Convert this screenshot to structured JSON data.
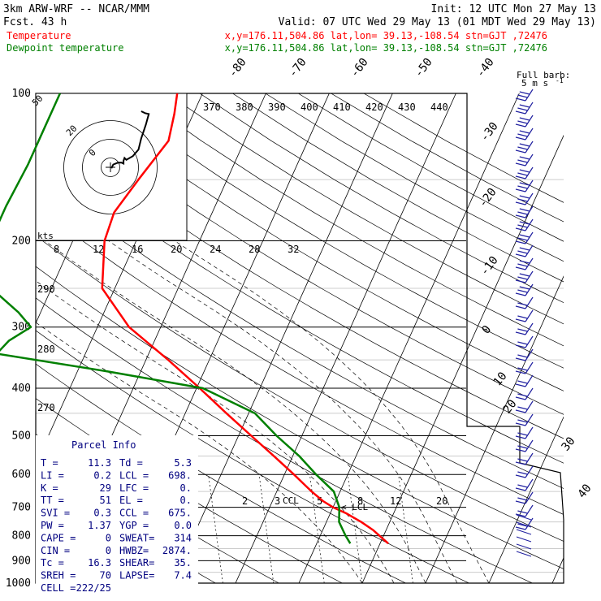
{
  "header": {
    "model": "3km ARW-WRF -- NCAR/MMM",
    "init": "Init: 12 UTC Mon 27 May 13",
    "fcst": "Fcst.   43 h",
    "valid": "Valid: 07 UTC Wed 29 May 13 (01 MDT Wed 29 May 13)"
  },
  "legend": {
    "temperature": {
      "label": "Temperature",
      "info": "x,y=176.11,504.86   lat,lon= 39.13,-108.54  stn=GJT ,72476",
      "color": "#ff0000"
    },
    "dewpoint": {
      "label": "Dewpoint temperature",
      "info": "x,y=176.11,504.86   lat,lon= 39.13,-108.54  stn=GJT ,72476",
      "color": "#008000"
    }
  },
  "barb_legend": {
    "line1": "Full barb:",
    "line2": "5 m s",
    "exp": "-1"
  },
  "parcel_info": {
    "title": "Parcel Info",
    "rows": [
      [
        "T  =",
        "11.3",
        "Td =",
        "5.3"
      ],
      [
        "LI =",
        "0.2",
        "LCL =",
        "698."
      ],
      [
        "K  =",
        "29",
        "LFC =",
        "0."
      ],
      [
        "TT =",
        "51",
        "EL  =",
        "0."
      ],
      [
        "SVI =",
        "0.3",
        "CCL =",
        "675."
      ],
      [
        "PW =",
        "1.37",
        "YGP =",
        "0.0"
      ],
      [
        "CAPE =",
        "0",
        "SWEAT=",
        "314"
      ],
      [
        "CIN =",
        "0",
        "HWBZ=",
        "2874."
      ],
      [
        "Tc =",
        "16.3",
        "SHEAR=",
        "35."
      ],
      [
        "SREH =",
        "70",
        "LAPSE=",
        "7.4"
      ],
      [
        "CELL =",
        "222/25",
        "",
        ""
      ]
    ]
  },
  "hodograph": {
    "units": "kts",
    "ring_labels": [
      "50",
      "20",
      "0"
    ],
    "ring_speeds": [
      10,
      30,
      50
    ],
    "u": [
      1,
      3,
      8,
      12,
      14,
      14,
      15,
      17,
      24,
      30,
      33,
      36,
      38,
      41,
      37,
      33
    ],
    "v": [
      -1,
      3,
      5,
      5,
      4,
      7,
      10,
      8,
      12,
      19,
      31,
      40,
      46,
      57,
      58,
      60
    ]
  },
  "chart_data": {
    "type": "line",
    "title": "",
    "xlabel": "",
    "ylabel": "",
    "y_scale": "log",
    "ylim": [
      1000,
      100
    ],
    "pressure_levels": [
      "100",
      "200",
      "300",
      "400",
      "500",
      "600",
      "700",
      "800",
      "900",
      "1000"
    ],
    "isotherm_labels": [
      "-80",
      "-70",
      "-60",
      "-50",
      "-40",
      "-30",
      "-20",
      "-10",
      "0",
      "10",
      "20",
      "30",
      "40"
    ],
    "theta_labels": [
      "370",
      "380",
      "390",
      "400",
      "410",
      "420",
      "430",
      "440"
    ],
    "theta_lower_labels": [
      "290",
      "280",
      "270"
    ],
    "mixing_ratio_labels": [
      "2",
      "3",
      "5",
      "8",
      "12",
      "20"
    ],
    "hodo_speed_labels": [
      "8",
      "12",
      "16",
      "20",
      "24",
      "28",
      "32"
    ],
    "annotations": {
      "ccl": "CCL",
      "lcl": "< LCL"
    },
    "series": [
      {
        "name": "Temperature",
        "color": "#ff0000",
        "pressure": [
          830,
          810,
          780,
          750,
          720,
          700,
          680,
          650,
          600,
          550,
          500,
          450,
          400,
          350,
          300,
          250,
          200,
          175,
          150,
          125,
          110,
          100
        ],
        "temperature": [
          11.3,
          10,
          8,
          5.5,
          2.5,
          0,
          -2,
          -4.5,
          -8.5,
          -13,
          -18,
          -23.5,
          -29.5,
          -36.5,
          -45,
          -52,
          -55,
          -55.5,
          -54,
          -52,
          -53,
          -54
        ]
      },
      {
        "name": "Dewpoint temperature",
        "color": "#008000",
        "pressure": [
          830,
          800,
          750,
          700,
          650,
          600,
          550,
          500,
          450,
          400,
          370,
          340,
          320,
          300,
          280,
          250,
          220,
          200,
          170,
          140,
          120,
          100
        ],
        "dewpoint": [
          5.3,
          4,
          2,
          1,
          -1,
          -5,
          -9,
          -14,
          -19,
          -29,
          -45,
          -64,
          -63,
          -60.5,
          -63.5,
          -69.5,
          -72,
          -73,
          -73,
          -72.5,
          -72.5,
          -72.5
        ]
      }
    ]
  }
}
